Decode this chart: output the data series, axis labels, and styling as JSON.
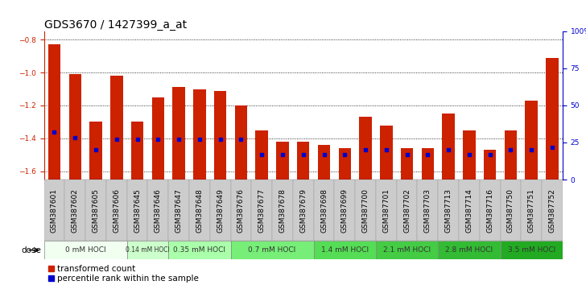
{
  "title": "GDS3670 / 1427399_a_at",
  "samples": [
    "GSM387601",
    "GSM387602",
    "GSM387605",
    "GSM387606",
    "GSM387645",
    "GSM387646",
    "GSM387647",
    "GSM387648",
    "GSM387649",
    "GSM387676",
    "GSM387677",
    "GSM387678",
    "GSM387679",
    "GSM387698",
    "GSM387699",
    "GSM387700",
    "GSM387701",
    "GSM387702",
    "GSM387703",
    "GSM387713",
    "GSM387714",
    "GSM387716",
    "GSM387750",
    "GSM387751",
    "GSM387752"
  ],
  "transformed_count": [
    -0.83,
    -1.01,
    -1.3,
    -1.02,
    -1.3,
    -1.15,
    -1.09,
    -1.1,
    -1.11,
    -1.2,
    -1.35,
    -1.42,
    -1.42,
    -1.44,
    -1.46,
    -1.27,
    -1.32,
    -1.46,
    -1.46,
    -1.25,
    -1.35,
    -1.47,
    -1.35,
    -1.17,
    -0.91
  ],
  "percentile_rank": [
    32,
    28,
    20,
    27,
    27,
    27,
    27,
    27,
    27,
    27,
    17,
    17,
    17,
    17,
    17,
    20,
    20,
    17,
    17,
    20,
    17,
    17,
    20,
    20,
    22
  ],
  "dose_groups": [
    {
      "label": "0 mM HOCl",
      "samples": [
        "GSM387601",
        "GSM387602",
        "GSM387605",
        "GSM387606"
      ],
      "color": "#f0fff0"
    },
    {
      "label": "0.14 mM HOCl",
      "samples": [
        "GSM387645",
        "GSM387646"
      ],
      "color": "#ccffcc"
    },
    {
      "label": "0.35 mM HOCl",
      "samples": [
        "GSM387647",
        "GSM387648",
        "GSM387649"
      ],
      "color": "#aaffaa"
    },
    {
      "label": "0.7 mM HOCl",
      "samples": [
        "GSM387676",
        "GSM387677",
        "GSM387678",
        "GSM387679"
      ],
      "color": "#77ee77"
    },
    {
      "label": "1.4 mM HOCl",
      "samples": [
        "GSM387698",
        "GSM387699",
        "GSM387700"
      ],
      "color": "#55dd55"
    },
    {
      "label": "2.1 mM HOCl",
      "samples": [
        "GSM387701",
        "GSM387702",
        "GSM387703"
      ],
      "color": "#44cc44"
    },
    {
      "label": "2.8 mM HOCl",
      "samples": [
        "GSM387713",
        "GSM387714",
        "GSM387716"
      ],
      "color": "#33bb33"
    },
    {
      "label": "3.5 mM HOCl",
      "samples": [
        "GSM387750",
        "GSM387751",
        "GSM387752"
      ],
      "color": "#22aa22"
    }
  ],
  "ylim_left": [
    -1.65,
    -0.75
  ],
  "ylim_right": [
    0,
    100
  ],
  "yticks_left": [
    -1.6,
    -1.4,
    -1.2,
    -1.0,
    -0.8
  ],
  "yticks_right": [
    0,
    25,
    50,
    75,
    100
  ],
  "bar_color": "#cc2200",
  "percentile_color": "#0000cc",
  "bg_color": "#ffffff",
  "plot_bg": "#ffffff",
  "grid_color": "#000000",
  "title_fontsize": 10,
  "tick_fontsize": 6.5,
  "dose_label_fontsize": 6.5,
  "legend_fontsize": 7.5
}
